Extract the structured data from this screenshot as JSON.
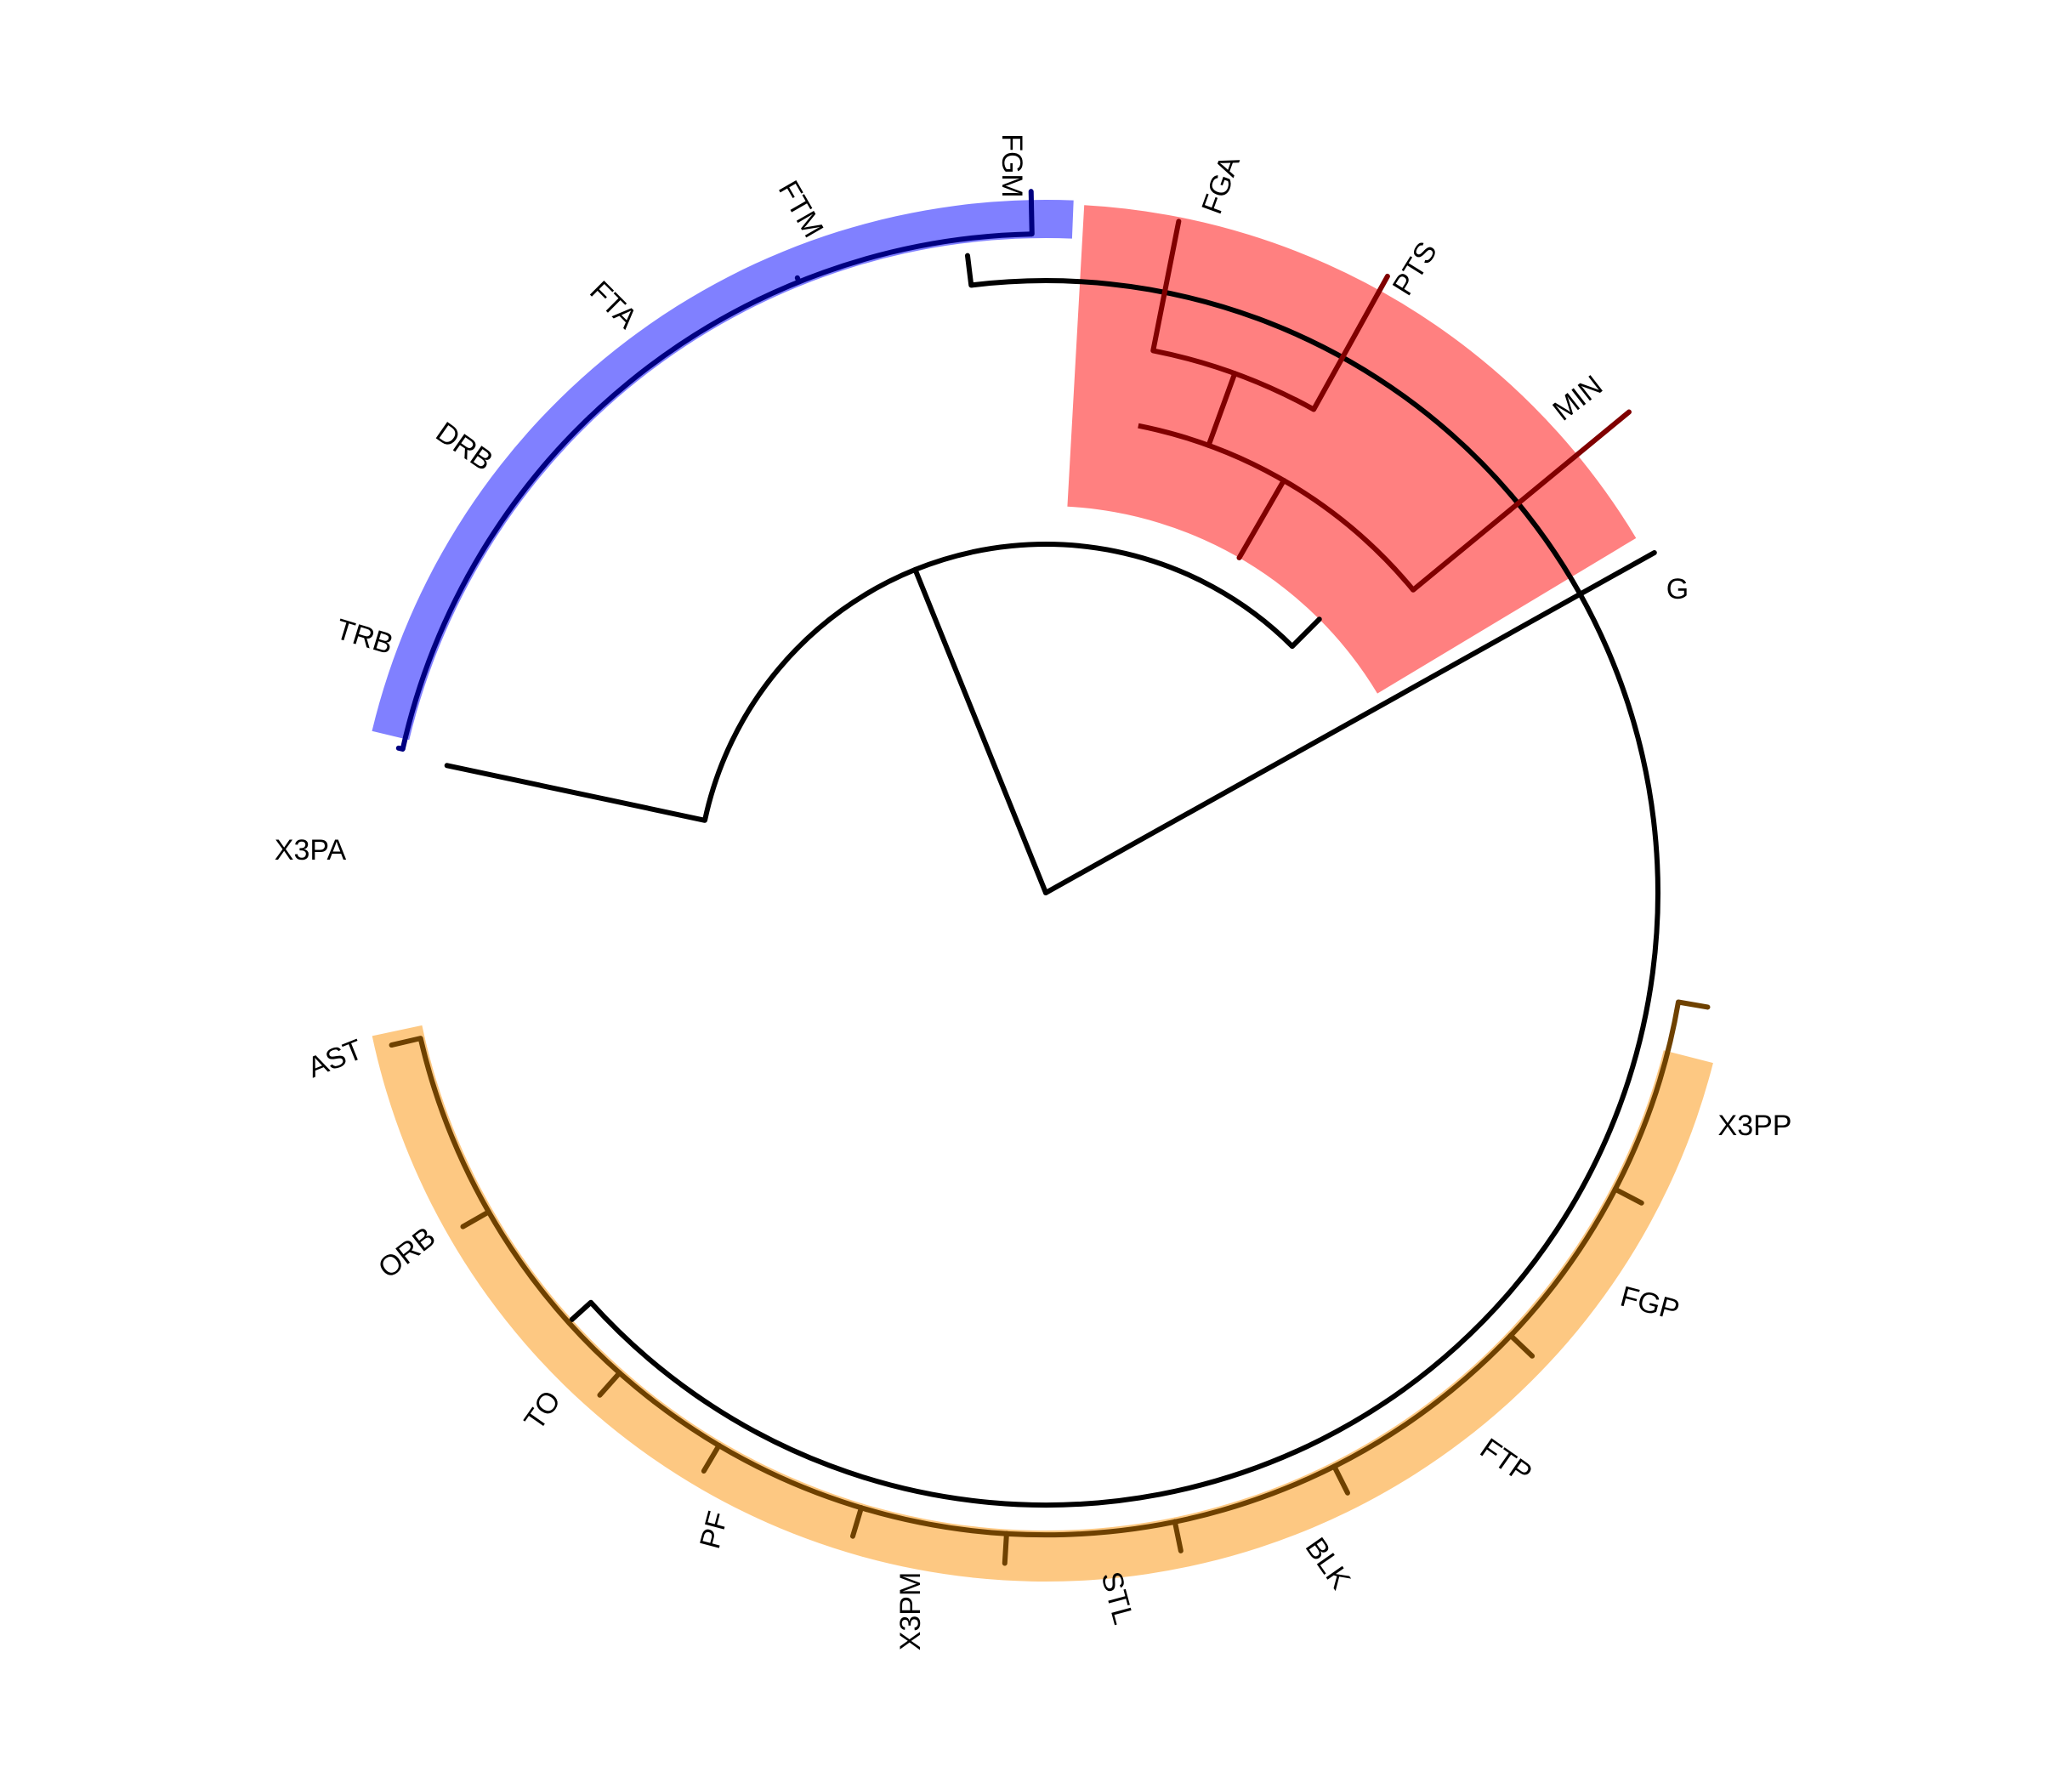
{
  "dendrogram": {
    "leaves": [
      {
        "id": "FGM",
        "label": "FGM"
      },
      {
        "id": "FTM",
        "label": "FTM"
      },
      {
        "id": "FTA",
        "label": "FTA"
      },
      {
        "id": "DRB",
        "label": "DRB"
      },
      {
        "id": "TRB",
        "label": "TRB"
      },
      {
        "id": "X3PA",
        "label": "X3PA"
      },
      {
        "id": "AST",
        "label": "AST"
      },
      {
        "id": "ORB",
        "label": "ORB"
      },
      {
        "id": "TO",
        "label": "TO"
      },
      {
        "id": "PF",
        "label": "PF"
      },
      {
        "id": "X3PM",
        "label": "X3PM"
      },
      {
        "id": "STL",
        "label": "STL"
      },
      {
        "id": "BLK",
        "label": "BLK"
      },
      {
        "id": "FTP",
        "label": "FTP"
      },
      {
        "id": "FGP",
        "label": "FGP"
      },
      {
        "id": "X3PP",
        "label": "X3PP"
      },
      {
        "id": "FGA",
        "label": "FGA"
      },
      {
        "id": "PTS",
        "label": "PTS"
      },
      {
        "id": "MIN",
        "label": "MIN"
      },
      {
        "id": "G",
        "label": "G"
      }
    ],
    "clusters": [
      {
        "name": "blue",
        "color": "#8080ff",
        "line_color": "#000080",
        "members": [
          "FGM",
          "FTM",
          "FTA",
          "DRB",
          "TRB"
        ]
      },
      {
        "name": "orange",
        "color": "#fdc882",
        "line_color": "#6e4100",
        "members": [
          "X3PA",
          "AST",
          "ORB",
          "TO",
          "PF",
          "X3PM",
          "STL",
          "BLK",
          "FTP",
          "FGP",
          "X3PP"
        ]
      },
      {
        "name": "red",
        "color": "#ff8080",
        "line_color": "#800000",
        "members": [
          "FGA",
          "PTS",
          "MIN"
        ]
      }
    ]
  }
}
